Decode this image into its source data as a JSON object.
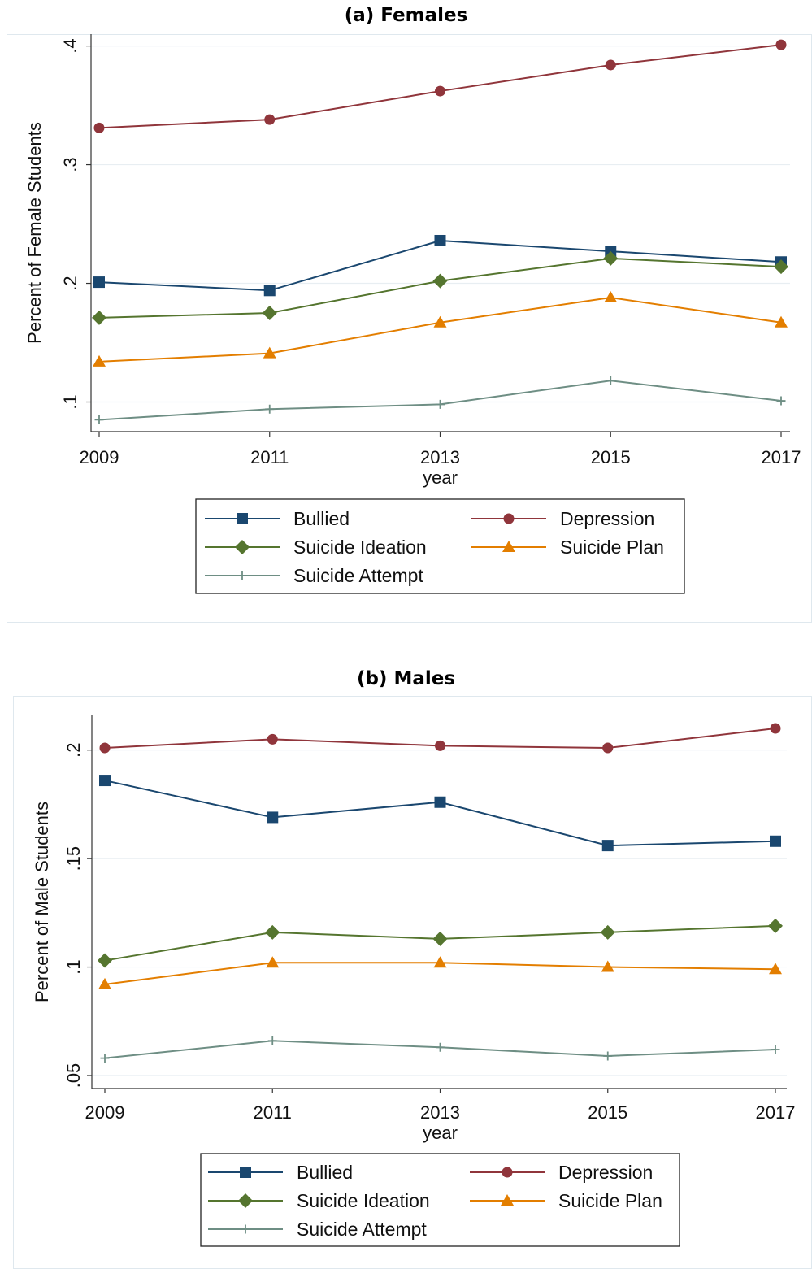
{
  "charts": {
    "0": {
      "title": "(a)  Females"
    },
    "1": {
      "title": "(b)  Males"
    }
  },
  "chart_data": [
    {
      "type": "line",
      "title": "(a)  Females",
      "xlabel": "year",
      "ylabel": "Percent of Female Students",
      "x": [
        2009,
        2011,
        2013,
        2015,
        2017
      ],
      "x_tick_labels": [
        "2009",
        "2011",
        "2013",
        "2015",
        "2017"
      ],
      "y_ticks": [
        0.1,
        0.2,
        0.3,
        0.4
      ],
      "y_tick_labels": [
        ".1",
        ".2",
        ".3",
        ".4"
      ],
      "ylim": [
        0.075,
        0.41
      ],
      "grid": true,
      "legend_position": "bottom",
      "series": [
        {
          "name": "Bullied",
          "color": "#1a476f",
          "marker": "square",
          "values": [
            0.201,
            0.194,
            0.236,
            0.227,
            0.218
          ]
        },
        {
          "name": "Depression",
          "color": "#90353b",
          "marker": "circle",
          "values": [
            0.331,
            0.338,
            0.362,
            0.384,
            0.401
          ]
        },
        {
          "name": "Suicide Ideation",
          "color": "#55752f",
          "marker": "diamond",
          "values": [
            0.171,
            0.175,
            0.202,
            0.221,
            0.214
          ]
        },
        {
          "name": "Suicide Plan",
          "color": "#e37e00",
          "marker": "triangle",
          "values": [
            0.134,
            0.141,
            0.167,
            0.188,
            0.167
          ]
        },
        {
          "name": "Suicide Attempt",
          "color": "#6e8e84",
          "marker": "plus",
          "values": [
            0.085,
            0.094,
            0.098,
            0.118,
            0.101
          ]
        }
      ]
    },
    {
      "type": "line",
      "title": "(b)  Males",
      "xlabel": "year",
      "ylabel": "Percent of Male Students",
      "x": [
        2009,
        2011,
        2013,
        2015,
        2017
      ],
      "x_tick_labels": [
        "2009",
        "2011",
        "2013",
        "2015",
        "2017"
      ],
      "y_ticks": [
        0.05,
        0.1,
        0.15,
        0.2
      ],
      "y_tick_labels": [
        ".05",
        ".1",
        ".15",
        ".2"
      ],
      "ylim": [
        0.044,
        0.216
      ],
      "grid": true,
      "legend_position": "bottom",
      "series": [
        {
          "name": "Bullied",
          "color": "#1a476f",
          "marker": "square",
          "values": [
            0.186,
            0.169,
            0.176,
            0.156,
            0.158
          ]
        },
        {
          "name": "Depression",
          "color": "#90353b",
          "marker": "circle",
          "values": [
            0.201,
            0.205,
            0.202,
            0.201,
            0.21
          ]
        },
        {
          "name": "Suicide Ideation",
          "color": "#55752f",
          "marker": "diamond",
          "values": [
            0.103,
            0.116,
            0.113,
            0.116,
            0.119
          ]
        },
        {
          "name": "Suicide Plan",
          "color": "#e37e00",
          "marker": "triangle",
          "values": [
            0.092,
            0.102,
            0.102,
            0.1,
            0.099
          ]
        },
        {
          "name": "Suicide Attempt",
          "color": "#6e8e84",
          "marker": "plus",
          "values": [
            0.058,
            0.066,
            0.063,
            0.059,
            0.062
          ]
        }
      ]
    }
  ]
}
